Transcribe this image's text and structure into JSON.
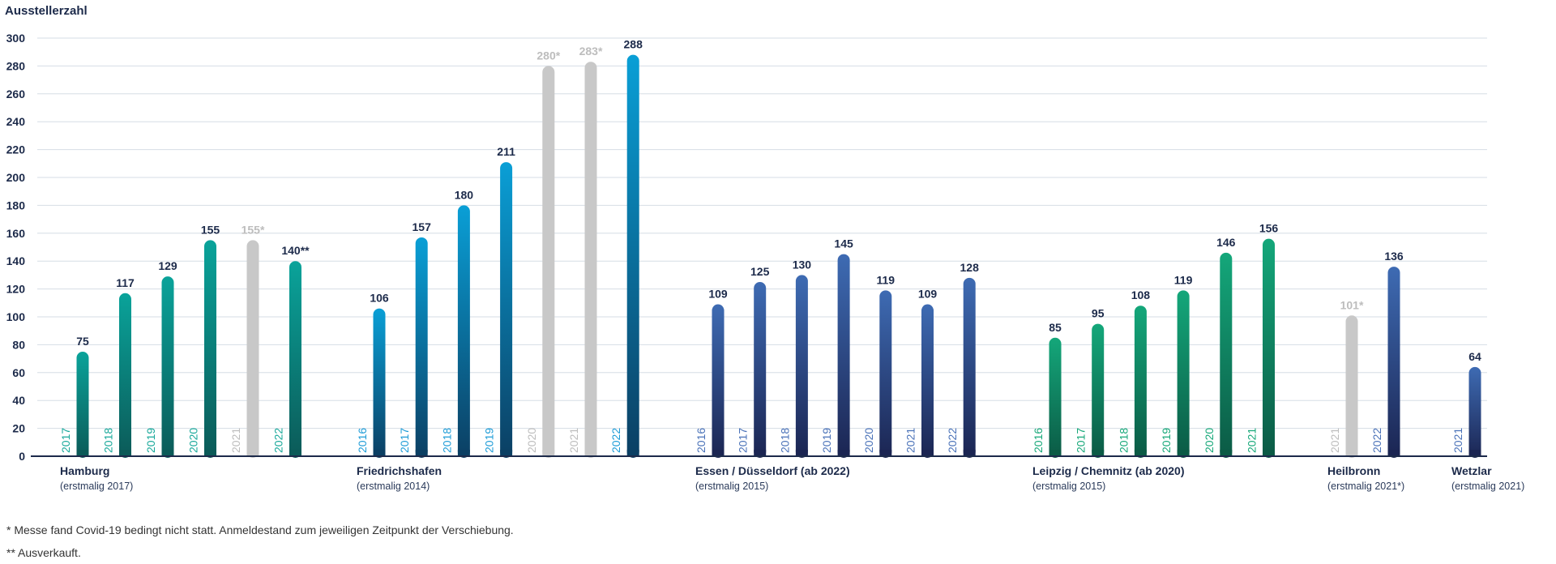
{
  "chart_data": {
    "type": "bar",
    "ylabel": "Ausstellerzahl",
    "ylim": [
      0,
      300
    ],
    "yticks": [
      0,
      20,
      40,
      60,
      80,
      100,
      120,
      140,
      160,
      180,
      200,
      220,
      240,
      260,
      280,
      300
    ],
    "grid": true,
    "groups": [
      {
        "name": "Hamburg",
        "subtitle": "(erstmalig 2017)",
        "theme": "teal",
        "bars": [
          {
            "year": "2017",
            "value": 75,
            "label": "75",
            "cancelled": false
          },
          {
            "year": "2018",
            "value": 117,
            "label": "117",
            "cancelled": false
          },
          {
            "year": "2019",
            "value": 129,
            "label": "129",
            "cancelled": false
          },
          {
            "year": "2020",
            "value": 155,
            "label": "155",
            "cancelled": false
          },
          {
            "year": "2021",
            "value": 155,
            "label": "155*",
            "cancelled": true
          },
          {
            "year": "2022",
            "value": 140,
            "label": "140**",
            "cancelled": false
          }
        ]
      },
      {
        "name": "Friedrichshafen",
        "subtitle": "(erstmalig 2014)",
        "theme": "blue",
        "bars": [
          {
            "year": "2016",
            "value": 106,
            "label": "106",
            "cancelled": false
          },
          {
            "year": "2017",
            "value": 157,
            "label": "157",
            "cancelled": false
          },
          {
            "year": "2018",
            "value": 180,
            "label": "180",
            "cancelled": false
          },
          {
            "year": "2019",
            "value": 211,
            "label": "211",
            "cancelled": false
          },
          {
            "year": "2020",
            "value": 280,
            "label": "280*",
            "cancelled": true
          },
          {
            "year": "2021",
            "value": 283,
            "label": "283*",
            "cancelled": true
          },
          {
            "year": "2022",
            "value": 288,
            "label": "288",
            "cancelled": false
          }
        ]
      },
      {
        "name": "Essen / Düsseldorf (ab 2022)",
        "subtitle": "(erstmalig 2015)",
        "theme": "navy",
        "bars": [
          {
            "year": "2016",
            "value": 109,
            "label": "109",
            "cancelled": false
          },
          {
            "year": "2017",
            "value": 125,
            "label": "125",
            "cancelled": false
          },
          {
            "year": "2018",
            "value": 130,
            "label": "130",
            "cancelled": false
          },
          {
            "year": "2019",
            "value": 145,
            "label": "145",
            "cancelled": false
          },
          {
            "year": "2020",
            "value": 119,
            "label": "119",
            "cancelled": false
          },
          {
            "year": "2021",
            "value": 109,
            "label": "109",
            "cancelled": false
          },
          {
            "year": "2022",
            "value": 128,
            "label": "128",
            "cancelled": false
          }
        ]
      },
      {
        "name": "Leipzig / Chemnitz (ab 2020)",
        "subtitle": "(erstmalig 2015)",
        "theme": "green",
        "bars": [
          {
            "year": "2016",
            "value": 85,
            "label": "85",
            "cancelled": false
          },
          {
            "year": "2017",
            "value": 95,
            "label": "95",
            "cancelled": false
          },
          {
            "year": "2018",
            "value": 108,
            "label": "108",
            "cancelled": false
          },
          {
            "year": "2019",
            "value": 119,
            "label": "119",
            "cancelled": false
          },
          {
            "year": "2020",
            "value": 146,
            "label": "146",
            "cancelled": false
          },
          {
            "year": "2021",
            "value": 156,
            "label": "156",
            "cancelled": false
          }
        ]
      },
      {
        "name": "Heilbronn",
        "subtitle": "(erstmalig 2021*)",
        "theme": "navy",
        "bars": [
          {
            "year": "2021",
            "value": 101,
            "label": "101*",
            "cancelled": true
          },
          {
            "year": "2022",
            "value": 136,
            "label": "136",
            "cancelled": false
          }
        ]
      },
      {
        "name": "Wetzlar",
        "subtitle": "(erstmalig 2021)",
        "theme": "navy",
        "bars": [
          {
            "year": "2021",
            "value": 64,
            "label": "64",
            "cancelled": false
          }
        ]
      }
    ],
    "themes": {
      "teal": {
        "top": "#0aa39a",
        "bottom": "#0b5a58",
        "year": "#18a89a"
      },
      "blue": {
        "top": "#0a9fd6",
        "bottom": "#0b3f63",
        "year": "#1e9cd7"
      },
      "navy": {
        "top": "#3e6bb3",
        "bottom": "#1b2552",
        "year": "#4a72b8"
      },
      "green": {
        "top": "#14a77a",
        "bottom": "#0b5a45",
        "year": "#17a879"
      }
    },
    "colors": {
      "cancelled_bar": "#c8c8c8",
      "cancelled_label": "#bdbdbd",
      "value_label": "#1c2a4a",
      "axis_text": "#1c2a4a",
      "grid": "#d6dde5",
      "baseline": "#1c2a4a"
    }
  },
  "footnotes": [
    " * Messe fand Covid-19 bedingt nicht statt. Anmeldestand zum jeweiligen Zeitpunkt der Verschiebung.",
    "** Ausverkauft."
  ]
}
